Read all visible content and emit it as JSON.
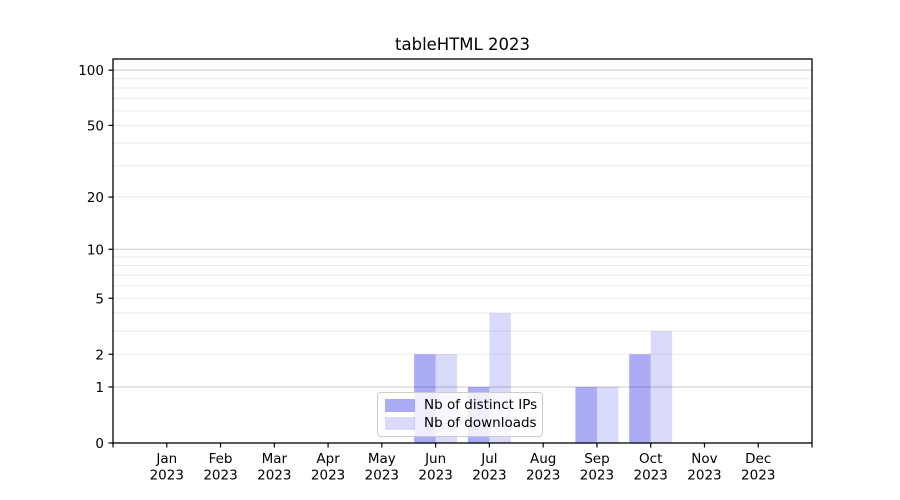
{
  "chart_data": {
    "type": "bar",
    "title": "tableHTML 2023",
    "categories": [
      "Jan 2023",
      "Feb 2023",
      "Mar 2023",
      "Apr 2023",
      "May 2023",
      "Jun 2023",
      "Jul 2023",
      "Aug 2023",
      "Sep 2023",
      "Oct 2023",
      "Nov 2023",
      "Dec 2023"
    ],
    "series": [
      {
        "name": "Nb of distinct IPs",
        "color": "rgba(25,25,230,0.36)",
        "values": [
          0,
          0,
          0,
          0,
          0,
          2,
          1,
          0,
          1,
          2,
          0,
          0
        ]
      },
      {
        "name": "Nb of downloads",
        "color": "rgba(25,25,230,0.16)",
        "values": [
          0,
          0,
          0,
          0,
          0,
          2,
          4,
          0,
          1,
          3,
          0,
          0
        ]
      }
    ],
    "xlabel": "",
    "ylabel": "",
    "yscale": "log1p",
    "ylim": [
      0,
      115
    ],
    "yticks": [
      0,
      1,
      2,
      5,
      10,
      20,
      50,
      100
    ],
    "y_major_gridlines": [
      1,
      10,
      100
    ],
    "y_minor_gridlines": [
      2,
      3,
      4,
      5,
      6,
      7,
      8,
      9,
      20,
      30,
      40,
      50,
      60,
      70,
      80,
      90
    ],
    "grid": "horizontal only",
    "legend_position": "inside lower-center",
    "colors": {
      "grid_major": "#c8c8c8",
      "grid_minor": "#eaeaea",
      "spine": "#000000",
      "text": "#000000",
      "legend_border": "#cccccc"
    }
  }
}
